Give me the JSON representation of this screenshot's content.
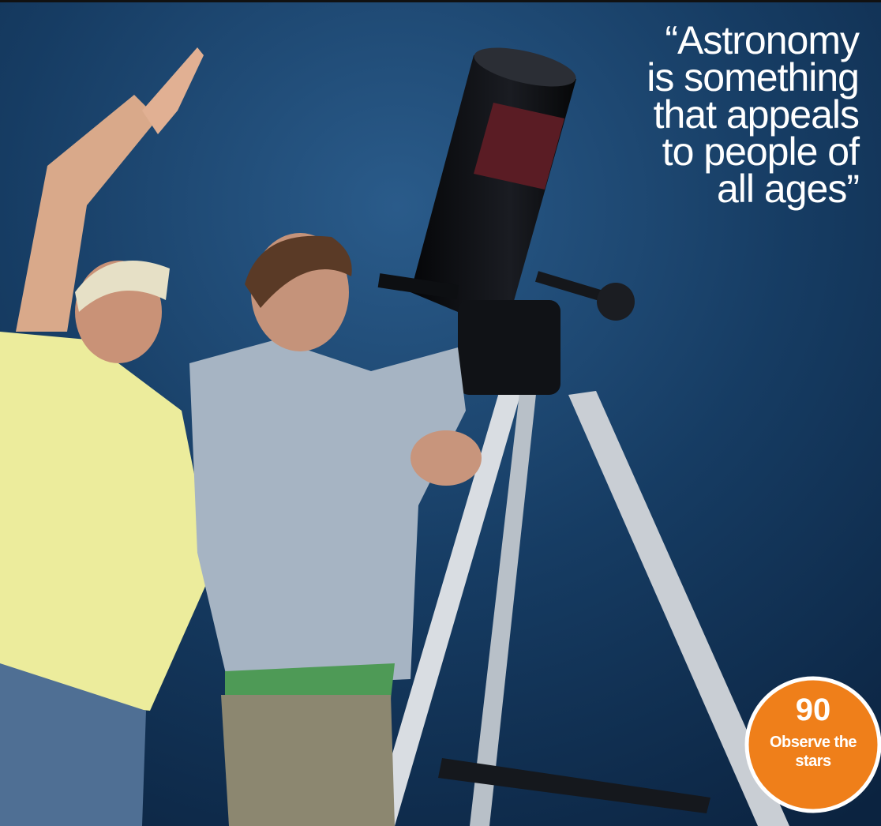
{
  "quote": {
    "lines": [
      "“Astronomy",
      "is something",
      "that appeals",
      "to people of",
      "all ages”"
    ]
  },
  "badge": {
    "number": 90,
    "label_lines": [
      "Observe the",
      "stars"
    ]
  }
}
